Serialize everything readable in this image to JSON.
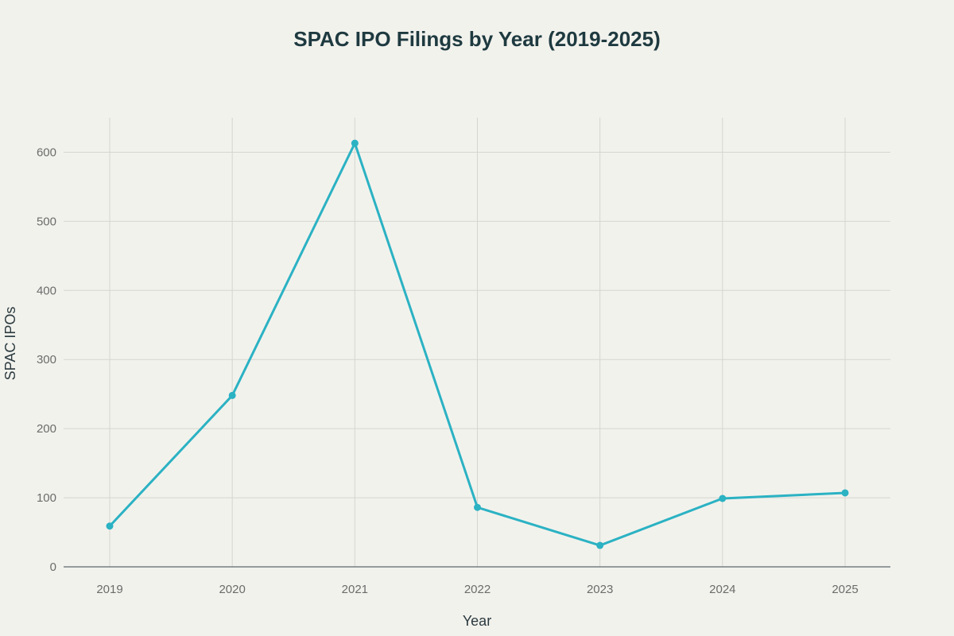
{
  "colors": {
    "background": "#f2f2ed",
    "line": "#2bb2c3",
    "grid": "#d6d6d0",
    "zero_line": "#5c6a6e"
  },
  "chart_data": {
    "type": "line",
    "title": "SPAC IPO Filings by Year (2019-2025)",
    "xlabel": "Year",
    "ylabel": "SPAC IPOs",
    "categories": [
      "2019",
      "2020",
      "2021",
      "2022",
      "2023",
      "2024",
      "2025"
    ],
    "series": [
      {
        "values": [
          59,
          248,
          613,
          86,
          31,
          99,
          107
        ]
      }
    ],
    "ylim": [
      0,
      650
    ],
    "yticks": [
      0,
      100,
      200,
      300,
      400,
      500,
      600
    ],
    "grid": true,
    "legend": "none"
  }
}
